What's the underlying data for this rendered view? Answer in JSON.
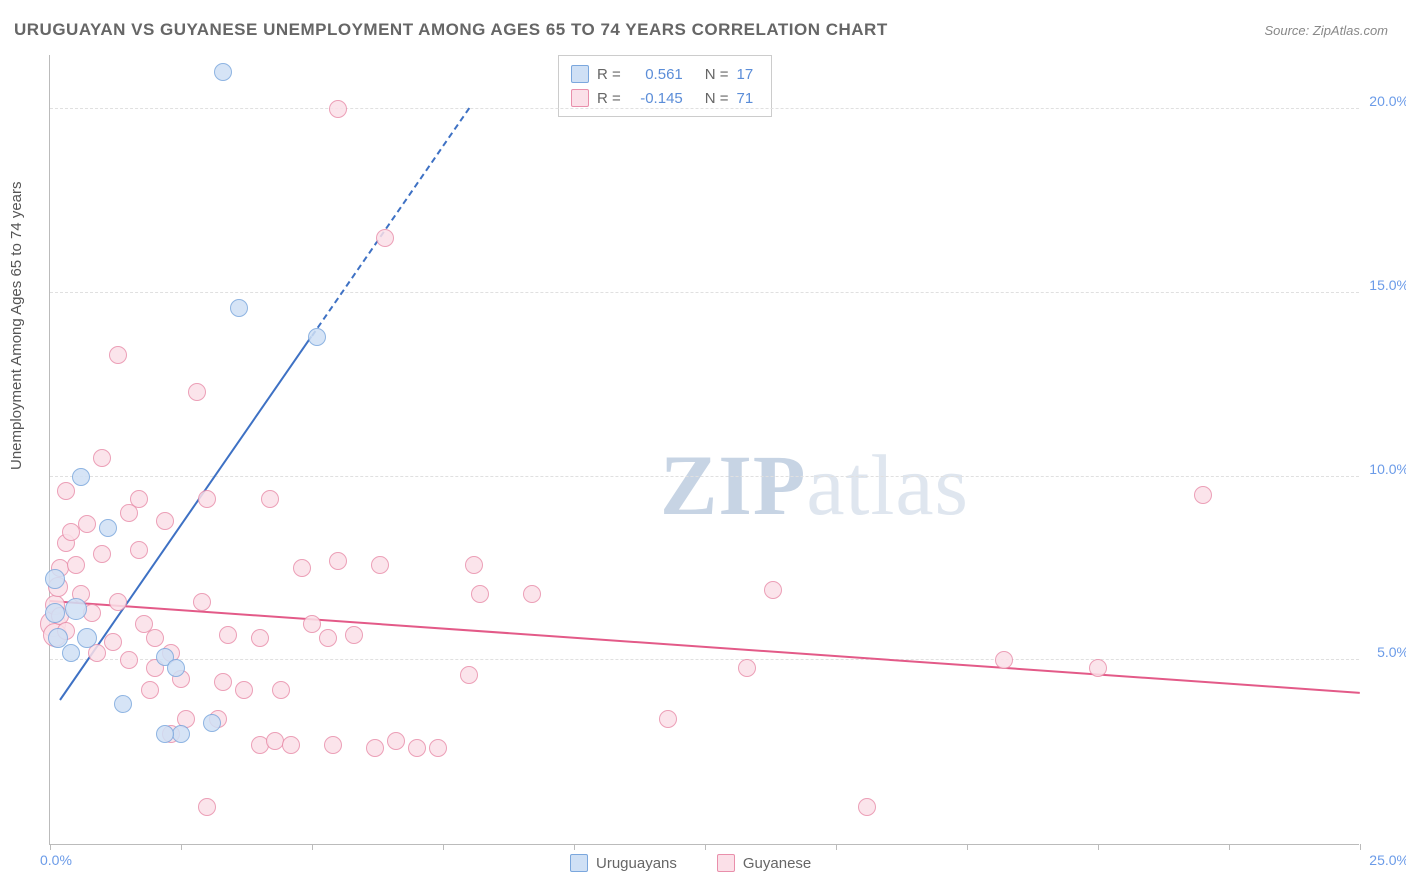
{
  "title": "URUGUAYAN VS GUYANESE UNEMPLOYMENT AMONG AGES 65 TO 74 YEARS CORRELATION CHART",
  "source": "Source: ZipAtlas.com",
  "ylabel": "Unemployment Among Ages 65 to 74 years",
  "watermark_a": "ZIP",
  "watermark_b": "atlas",
  "chart": {
    "type": "scatter",
    "xlim": [
      0,
      25
    ],
    "ylim": [
      0,
      21.5
    ],
    "x_ticks": [
      0,
      2.5,
      5,
      7.5,
      10,
      12.5,
      15,
      17.5,
      20,
      22.5,
      25
    ],
    "x_tick_labels": [
      {
        "x": 0,
        "label": "0.0%"
      },
      {
        "x": 25,
        "label": "25.0%"
      }
    ],
    "y_grid": [
      5,
      10,
      15,
      20
    ],
    "y_tick_labels": [
      {
        "y": 5,
        "label": "5.0%"
      },
      {
        "y": 10,
        "label": "10.0%"
      },
      {
        "y": 15,
        "label": "15.0%"
      },
      {
        "y": 20,
        "label": "20.0%"
      }
    ],
    "background_color": "#ffffff",
    "grid_color": "#e0e0e0",
    "axis_color": "#bbbbbb",
    "point_radius": 9,
    "series": [
      {
        "name": "Uruguayans",
        "fill": "#cfe0f5",
        "stroke": "#7ba7dd",
        "trend_color": "#3e71c4",
        "trend_solid": {
          "x1": 0.2,
          "y1": 3.9,
          "x2": 5.0,
          "y2": 13.8
        },
        "trend_dash": {
          "x1": 5.0,
          "y1": 13.8,
          "x2": 8.0,
          "y2": 20.0
        },
        "R": "0.561",
        "N": "17",
        "points": [
          {
            "x": 0.1,
            "y": 7.2,
            "r": 10
          },
          {
            "x": 0.1,
            "y": 6.3,
            "r": 10
          },
          {
            "x": 0.15,
            "y": 5.6,
            "r": 10
          },
          {
            "x": 0.4,
            "y": 5.2,
            "r": 9
          },
          {
            "x": 0.5,
            "y": 6.4,
            "r": 11
          },
          {
            "x": 0.7,
            "y": 5.6,
            "r": 10
          },
          {
            "x": 0.6,
            "y": 10.0,
            "r": 9
          },
          {
            "x": 1.1,
            "y": 8.6,
            "r": 9
          },
          {
            "x": 1.4,
            "y": 3.8,
            "r": 9
          },
          {
            "x": 2.2,
            "y": 5.1,
            "r": 9
          },
          {
            "x": 2.4,
            "y": 4.8,
            "r": 9
          },
          {
            "x": 2.5,
            "y": 3.0,
            "r": 9
          },
          {
            "x": 3.1,
            "y": 3.3,
            "r": 9
          },
          {
            "x": 3.3,
            "y": 21.0,
            "r": 9
          },
          {
            "x": 3.6,
            "y": 14.6,
            "r": 9
          },
          {
            "x": 5.1,
            "y": 13.8,
            "r": 9
          },
          {
            "x": 2.2,
            "y": 3.0,
            "r": 9
          }
        ]
      },
      {
        "name": "Guyanese",
        "fill": "#fbe0e8",
        "stroke": "#e98fab",
        "trend_color": "#e35a88",
        "trend_solid": {
          "x1": 0,
          "y1": 6.6,
          "x2": 25,
          "y2": 4.1
        },
        "R": "-0.145",
        "N": "71",
        "points": [
          {
            "x": 0.05,
            "y": 6.0,
            "r": 13
          },
          {
            "x": 0.1,
            "y": 5.7,
            "r": 12
          },
          {
            "x": 0.1,
            "y": 6.5,
            "r": 10
          },
          {
            "x": 0.15,
            "y": 7.0,
            "r": 10
          },
          {
            "x": 0.2,
            "y": 7.5,
            "r": 9
          },
          {
            "x": 0.2,
            "y": 6.2,
            "r": 9
          },
          {
            "x": 0.3,
            "y": 5.8,
            "r": 9
          },
          {
            "x": 0.3,
            "y": 8.2,
            "r": 9
          },
          {
            "x": 0.3,
            "y": 9.6,
            "r": 9
          },
          {
            "x": 0.4,
            "y": 8.5,
            "r": 9
          },
          {
            "x": 0.5,
            "y": 7.6,
            "r": 9
          },
          {
            "x": 0.7,
            "y": 8.7,
            "r": 9
          },
          {
            "x": 1.0,
            "y": 7.9,
            "r": 9
          },
          {
            "x": 1.0,
            "y": 10.5,
            "r": 9
          },
          {
            "x": 1.2,
            "y": 5.5,
            "r": 9
          },
          {
            "x": 1.3,
            "y": 13.3,
            "r": 9
          },
          {
            "x": 1.5,
            "y": 9.0,
            "r": 9
          },
          {
            "x": 1.7,
            "y": 9.4,
            "r": 9
          },
          {
            "x": 1.7,
            "y": 8.0,
            "r": 9
          },
          {
            "x": 1.8,
            "y": 6.0,
            "r": 9
          },
          {
            "x": 1.9,
            "y": 4.2,
            "r": 9
          },
          {
            "x": 2.0,
            "y": 5.6,
            "r": 9
          },
          {
            "x": 2.0,
            "y": 4.8,
            "r": 9
          },
          {
            "x": 2.2,
            "y": 8.8,
            "r": 9
          },
          {
            "x": 2.3,
            "y": 5.2,
            "r": 9
          },
          {
            "x": 2.3,
            "y": 3.0,
            "r": 9
          },
          {
            "x": 2.5,
            "y": 4.5,
            "r": 9
          },
          {
            "x": 2.6,
            "y": 3.4,
            "r": 9
          },
          {
            "x": 2.8,
            "y": 12.3,
            "r": 9
          },
          {
            "x": 2.9,
            "y": 6.6,
            "r": 9
          },
          {
            "x": 3.0,
            "y": 9.4,
            "r": 9
          },
          {
            "x": 3.0,
            "y": 1.0,
            "r": 9
          },
          {
            "x": 3.2,
            "y": 3.4,
            "r": 9
          },
          {
            "x": 3.3,
            "y": 4.4,
            "r": 9
          },
          {
            "x": 3.4,
            "y": 5.7,
            "r": 9
          },
          {
            "x": 3.7,
            "y": 4.2,
            "r": 9
          },
          {
            "x": 4.0,
            "y": 5.6,
            "r": 9
          },
          {
            "x": 4.0,
            "y": 2.7,
            "r": 9
          },
          {
            "x": 4.2,
            "y": 9.4,
            "r": 9
          },
          {
            "x": 4.3,
            "y": 2.8,
            "r": 9
          },
          {
            "x": 4.4,
            "y": 4.2,
            "r": 9
          },
          {
            "x": 4.6,
            "y": 2.7,
            "r": 9
          },
          {
            "x": 4.8,
            "y": 7.5,
            "r": 9
          },
          {
            "x": 5.0,
            "y": 6.0,
            "r": 9
          },
          {
            "x": 5.3,
            "y": 5.6,
            "r": 9
          },
          {
            "x": 5.4,
            "y": 2.7,
            "r": 9
          },
          {
            "x": 5.5,
            "y": 20.0,
            "r": 9
          },
          {
            "x": 5.5,
            "y": 7.7,
            "r": 9
          },
          {
            "x": 5.8,
            "y": 5.7,
            "r": 9
          },
          {
            "x": 6.2,
            "y": 2.6,
            "r": 9
          },
          {
            "x": 6.3,
            "y": 7.6,
            "r": 9
          },
          {
            "x": 6.4,
            "y": 16.5,
            "r": 9
          },
          {
            "x": 6.6,
            "y": 2.8,
            "r": 9
          },
          {
            "x": 7.0,
            "y": 2.6,
            "r": 9
          },
          {
            "x": 7.4,
            "y": 2.6,
            "r": 9
          },
          {
            "x": 8.0,
            "y": 4.6,
            "r": 9
          },
          {
            "x": 8.1,
            "y": 7.6,
            "r": 9
          },
          {
            "x": 8.2,
            "y": 6.8,
            "r": 9
          },
          {
            "x": 9.2,
            "y": 6.8,
            "r": 9
          },
          {
            "x": 11.8,
            "y": 3.4,
            "r": 9
          },
          {
            "x": 13.3,
            "y": 4.8,
            "r": 9
          },
          {
            "x": 13.8,
            "y": 6.9,
            "r": 9
          },
          {
            "x": 15.6,
            "y": 1.0,
            "r": 9
          },
          {
            "x": 18.2,
            "y": 5.0,
            "r": 9
          },
          {
            "x": 20.0,
            "y": 4.8,
            "r": 9
          },
          {
            "x": 22.0,
            "y": 9.5,
            "r": 9
          },
          {
            "x": 0.6,
            "y": 6.8,
            "r": 9
          },
          {
            "x": 0.8,
            "y": 6.3,
            "r": 9
          },
          {
            "x": 0.9,
            "y": 5.2,
            "r": 9
          },
          {
            "x": 1.3,
            "y": 6.6,
            "r": 9
          },
          {
            "x": 1.5,
            "y": 5.0,
            "r": 9
          }
        ]
      }
    ],
    "legend": {
      "labels": [
        "Uruguayans",
        "Guyanese"
      ]
    },
    "stats_box": {
      "R_label": "R =",
      "N_label": "N ="
    }
  }
}
